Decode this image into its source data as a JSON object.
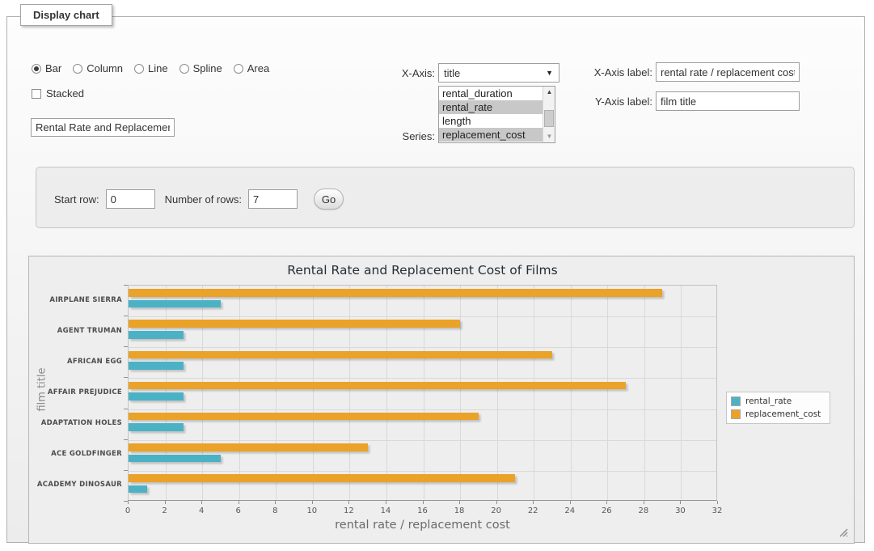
{
  "panel": {
    "legend": "Display chart"
  },
  "controls": {
    "type_options": [
      {
        "label": "Bar",
        "selected": true
      },
      {
        "label": "Column",
        "selected": false
      },
      {
        "label": "Line",
        "selected": false
      },
      {
        "label": "Spline",
        "selected": false
      },
      {
        "label": "Area",
        "selected": false
      }
    ],
    "stacked_label": "Stacked",
    "stacked_checked": false,
    "title_input_value": "Rental Rate and Replacemer",
    "x_axis_caption": "X-Axis:",
    "x_axis_selected": "title",
    "series_caption": "Series:",
    "series_options": [
      {
        "label": "rental_duration",
        "selected": false
      },
      {
        "label": "rental_rate",
        "selected": true
      },
      {
        "label": "length",
        "selected": false
      },
      {
        "label": "replacement_cost",
        "selected": true
      }
    ],
    "x_label_caption": "X-Axis label:",
    "x_label_value": "rental rate / replacement cost",
    "y_label_caption": "Y-Axis label:",
    "y_label_value": "film title",
    "start_row_label": "Start row:",
    "start_row_value": "0",
    "num_rows_label": "Number of rows:",
    "num_rows_value": "7",
    "go_label": "Go"
  },
  "chart_data": {
    "type": "bar",
    "orientation": "horizontal",
    "title": "Rental Rate and Replacement Cost of Films",
    "categories": [
      "AIRPLANE SIERRA",
      "AGENT TRUMAN",
      "AFRICAN EGG",
      "AFFAIR PREJUDICE",
      "ADAPTATION HOLES",
      "ACE GOLDFINGER",
      "ACADEMY DINOSAUR"
    ],
    "series": [
      {
        "name": "rental_rate",
        "color": "#4bb2c5",
        "values": [
          4.99,
          2.99,
          2.99,
          2.99,
          2.99,
          4.99,
          0.99
        ]
      },
      {
        "name": "replacement_cost",
        "color": "#eaa228",
        "values": [
          28.99,
          17.99,
          22.99,
          26.99,
          18.99,
          12.99,
          20.99
        ]
      }
    ],
    "xlabel": "rental rate / replacement cost",
    "ylabel": "film title",
    "xlim": [
      0,
      32
    ],
    "xticks": [
      0,
      2,
      4,
      6,
      8,
      10,
      12,
      14,
      16,
      18,
      20,
      22,
      24,
      26,
      28,
      30,
      32
    ],
    "grid": true,
    "legend_position": "right"
  }
}
